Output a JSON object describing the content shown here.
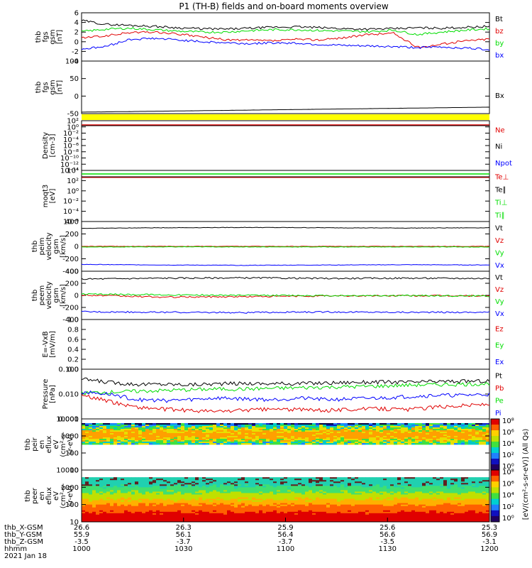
{
  "title": "P1 (TH-B) fields and on-board moments overview",
  "colors": {
    "black": "#000000",
    "red": "#e00000",
    "green": "#00dd00",
    "blue": "#0000ff",
    "yellow": "#ffff00"
  },
  "chart_data": [
    {
      "type": "line",
      "panel": "fgs",
      "ylabel_lines": [
        "thb",
        "fgs",
        "gsm",
        "[nT]"
      ],
      "yticks": [
        "6",
        "4",
        "2",
        "0",
        "-2",
        "-4"
      ],
      "ylim": [
        -4,
        6
      ],
      "series": [
        {
          "name": "Bt",
          "color": "black",
          "values": [
            4.4,
            3.6,
            3.4,
            3.2,
            2.9,
            2.7,
            2.6,
            2.8,
            3.0,
            3.1,
            2.9,
            2.7,
            2.6,
            2.7,
            2.9,
            2.8,
            3.0,
            3.2
          ]
        },
        {
          "name": "bz",
          "color": "red",
          "values": [
            0.8,
            1.2,
            1.9,
            2.0,
            1.6,
            1.0,
            0.4,
            0.3,
            0.2,
            0.5,
            0.4,
            0.9,
            1.5,
            1.8,
            -1.2,
            -0.5,
            0.2,
            0.6
          ]
        },
        {
          "name": "by",
          "color": "green",
          "values": [
            2.1,
            2.6,
            2.8,
            2.5,
            2.2,
            2.0,
            2.0,
            2.3,
            2.5,
            2.5,
            2.3,
            2.2,
            2.1,
            2.4,
            1.5,
            2.0,
            2.4,
            2.7
          ]
        },
        {
          "name": "bx",
          "color": "blue",
          "values": [
            -1.5,
            -1.0,
            0.5,
            0.7,
            0.4,
            0.0,
            -0.2,
            -0.4,
            -0.2,
            -0.3,
            -0.6,
            -0.8,
            -0.9,
            -1.0,
            -1.2,
            -1.1,
            -1.3,
            -1.6
          ]
        }
      ]
    },
    {
      "type": "line",
      "panel": "fgs-bx",
      "ylabel_lines": [
        "thb",
        "fgs",
        "gsm",
        "[nT]"
      ],
      "yticks": [
        "100",
        "50",
        "0",
        "-50"
      ],
      "ylim": [
        -80,
        100
      ],
      "series": [
        {
          "name": "Bx",
          "color": "black",
          "values": [
            -75,
            -74,
            -73,
            -72,
            -71,
            -70,
            -69,
            -68,
            -67,
            -66,
            -65,
            -64,
            -63,
            -62,
            -61,
            -60,
            -59,
            -58
          ]
        }
      ]
    },
    {
      "type": "line",
      "panel": "density",
      "log": true,
      "ylabel_lines": [
        "Density",
        "[cm-3]"
      ],
      "yticks": [
        "10²",
        "10⁰",
        "10⁻²",
        "10⁻⁴",
        "10⁻⁶",
        "10⁻⁸",
        "10⁻¹⁰",
        "10⁻¹²",
        "10⁻¹⁴"
      ],
      "legend": [
        {
          "name": "Ne",
          "color": "red"
        },
        {
          "name": "Ni",
          "color": "black"
        },
        {
          "name": "Npot",
          "color": "blue"
        }
      ]
    },
    {
      "type": "line",
      "panel": "temperature",
      "log": true,
      "ylabel_lines": [
        "moqt3",
        "[eV]"
      ],
      "yticks": [
        "10⁴",
        "10²",
        "10⁰",
        "10⁻²",
        "10⁻⁴",
        "10⁻⁶"
      ],
      "legend": [
        {
          "name": "Te⊥",
          "color": "red"
        },
        {
          "name": "Te∥",
          "color": "black"
        },
        {
          "name": "Ti⊥",
          "color": "green"
        },
        {
          "name": "Ti∥",
          "color": "green"
        }
      ]
    },
    {
      "type": "line",
      "panel": "peim",
      "ylabel_lines": [
        "thb",
        "peim",
        "velocity",
        "gsm",
        "[km/s]"
      ],
      "yticks": [
        "400",
        "200",
        "0",
        "-200",
        "-400"
      ],
      "ylim": [
        -400,
        400
      ],
      "series": [
        {
          "name": "Vt",
          "color": "black",
          "values": [
            290,
            300,
            305,
            300,
            295,
            300
          ]
        },
        {
          "name": "Vz",
          "color": "red",
          "values": [
            0,
            0,
            0,
            0,
            0,
            0
          ]
        },
        {
          "name": "Vy",
          "color": "green",
          "values": [
            -10,
            -8,
            -8,
            -9,
            -9,
            -10
          ]
        },
        {
          "name": "Vx",
          "color": "blue",
          "values": [
            -290,
            -300,
            -305,
            -300,
            -295,
            -300
          ]
        }
      ]
    },
    {
      "type": "line",
      "panel": "peem",
      "ylabel_lines": [
        "thb",
        "peem",
        "velocity",
        "gsm",
        "[km/s]"
      ],
      "yticks": [
        "400",
        "200",
        "0",
        "-200",
        "-400"
      ],
      "ylim": [
        -400,
        400
      ],
      "series": [
        {
          "name": "Vt",
          "color": "black",
          "values": [
            270,
            285,
            290,
            280,
            285,
            280
          ]
        },
        {
          "name": "Vz",
          "color": "red",
          "values": [
            5,
            -30,
            -20,
            -10,
            -5,
            -8
          ]
        },
        {
          "name": "Vy",
          "color": "green",
          "values": [
            20,
            10,
            0,
            -5,
            -5,
            -10
          ]
        },
        {
          "name": "Vx",
          "color": "blue",
          "values": [
            -270,
            -280,
            -285,
            -275,
            -280,
            -280
          ]
        }
      ]
    },
    {
      "type": "line",
      "panel": "efield",
      "ylabel_lines": [
        "E=-VxB",
        "[mV/m]"
      ],
      "yticks": [
        "1.0",
        "0.8",
        "0.6",
        "0.4",
        "0.2",
        "0.0"
      ],
      "legend": [
        {
          "name": "Ez",
          "color": "red"
        },
        {
          "name": "Ey",
          "color": "green"
        },
        {
          "name": "Ex",
          "color": "blue"
        }
      ]
    },
    {
      "type": "line",
      "panel": "pressure",
      "log": true,
      "ylabel_lines": [
        "Pressure",
        "[nPa]"
      ],
      "yticks": [
        "0.100",
        "0.010",
        "0.001"
      ],
      "ylim": [
        0.001,
        0.1
      ],
      "series": [
        {
          "name": "Pt",
          "color": "black",
          "values": [
            0.04,
            0.03,
            0.025,
            0.025,
            0.024,
            0.026,
            0.027,
            0.026,
            0.027,
            0.028,
            0.03,
            0.031,
            0.03,
            0.032,
            0.033,
            0.034
          ]
        },
        {
          "name": "Pb",
          "color": "red",
          "values": [
            0.009,
            0.005,
            0.003,
            0.0025,
            0.0022,
            0.002,
            0.0023,
            0.0025,
            0.0024,
            0.0022,
            0.0025,
            0.0026,
            0.0024,
            0.003,
            0.0035,
            0.004
          ]
        },
        {
          "name": "Pe",
          "color": "green",
          "values": [
            0.011,
            0.012,
            0.013,
            0.014,
            0.015,
            0.016,
            0.016,
            0.017,
            0.018,
            0.019,
            0.02,
            0.021,
            0.023,
            0.024,
            0.025,
            0.026
          ]
        },
        {
          "name": "Pi",
          "color": "blue",
          "values": [
            0.012,
            0.01,
            0.006,
            0.0055,
            0.006,
            0.007,
            0.0065,
            0.006,
            0.007,
            0.006,
            0.0065,
            0.007,
            0.008,
            0.009,
            0.009,
            0.01
          ]
        }
      ]
    },
    {
      "type": "heatmap",
      "panel": "peir",
      "log": true,
      "ylabel_lines": [
        "thb",
        "peir",
        "en",
        "eflux",
        "eV",
        "(cm²-s-",
        "sr-eV)"
      ],
      "yticks": [
        "10000",
        "1000",
        "100",
        "10"
      ],
      "colorbar_ticks": [
        "10⁸",
        "10⁶",
        "10⁴",
        "10²",
        "10⁰"
      ]
    },
    {
      "type": "heatmap",
      "panel": "peer",
      "log": true,
      "ylabel_lines": [
        "thb",
        "peer",
        "en",
        "eflux",
        "eV",
        "(cm²-s-",
        "sr-eV)"
      ],
      "yticks": [
        "10000",
        "1000",
        "100",
        "10"
      ],
      "colorbar_ticks": [
        "10⁸",
        "10⁶",
        "10⁴",
        "10²",
        "10⁰"
      ]
    }
  ],
  "legend_labels": {
    "p0": [
      "Bt",
      "bz",
      "by",
      "bx"
    ],
    "p1": [
      "Bx"
    ],
    "p2": [
      "Ne",
      "Ni",
      "Npot"
    ],
    "p3": [
      "Te⊥",
      "Te∥",
      "Ti⊥",
      "Ti∥"
    ],
    "p4": [
      "Vt",
      "Vz",
      "Vy",
      "Vx"
    ],
    "p5": [
      "Vt",
      "Vz",
      "Vy",
      "Vx"
    ],
    "p6": [
      "Ez",
      "Ey",
      "Ex"
    ],
    "p7": [
      "Pt",
      "Pb",
      "Pe",
      "Pi"
    ]
  },
  "colorbar_label": "[eV/(cm²-s-sr-eV)] (All Qs)",
  "xaxis": {
    "row_labels": [
      "thb_X-GSM",
      "thb_Y-GSM",
      "thb_Z-GSM",
      "hhmm",
      "2021 Jan 18"
    ],
    "columns": [
      [
        "26.6",
        "55.9",
        "-3.5",
        "1000"
      ],
      [
        "26.3",
        "56.1",
        "-3.7",
        "1030"
      ],
      [
        "25.9",
        "56.4",
        "-3.7",
        "1100"
      ],
      [
        "25.6",
        "56.6",
        "-3.5",
        "1130"
      ],
      [
        "25.3",
        "56.9",
        "-3.1",
        "1200"
      ]
    ]
  }
}
